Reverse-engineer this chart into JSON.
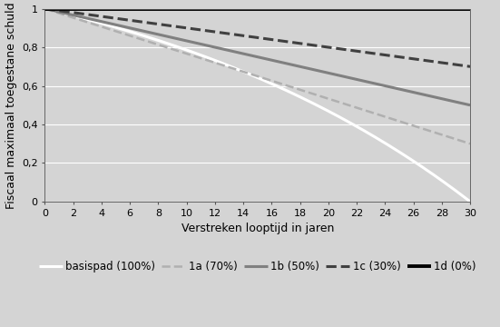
{
  "title": "",
  "xlabel": "Verstreken looptijd in jaren",
  "ylabel": "Fiscaal maximaal toegestane schuld",
  "xlim": [
    0,
    30
  ],
  "ylim": [
    0,
    1.0
  ],
  "xticks": [
    0,
    2,
    4,
    6,
    8,
    10,
    12,
    14,
    16,
    18,
    20,
    22,
    24,
    26,
    28,
    30
  ],
  "yticks": [
    0,
    0.2,
    0.4,
    0.6,
    0.8,
    1.0
  ],
  "ytick_labels": [
    "0",
    "0,2",
    "0,4",
    "0,6",
    "0,8",
    "1"
  ],
  "rate": 0.04,
  "n_years": 30,
  "line_styles": {
    "basispad": {
      "color": "#ffffff",
      "linestyle": "-",
      "linewidth": 2.2,
      "label": "basispad (100%)"
    },
    "1a": {
      "color": "#b0b0b0",
      "linestyle": "--",
      "linewidth": 1.8,
      "label": "1a (70%)"
    },
    "1b": {
      "color": "#808080",
      "linestyle": "-",
      "linewidth": 2.2,
      "label": "1b (50%)"
    },
    "1c": {
      "color": "#404040",
      "linestyle": "--",
      "linewidth": 2.2,
      "label": "1c (30%)"
    },
    "1d": {
      "color": "#000000",
      "linestyle": "-",
      "linewidth": 2.8,
      "label": "1d (0%)"
    }
  },
  "background_color": "#d4d4d4",
  "plot_bg_color": "#d4d4d4",
  "grid_color": "#ffffff",
  "axis_label_fontsize": 9,
  "tick_fontsize": 8,
  "legend_fontsize": 8.5,
  "figsize": [
    5.51,
    3.6
  ],
  "dpi": 100
}
